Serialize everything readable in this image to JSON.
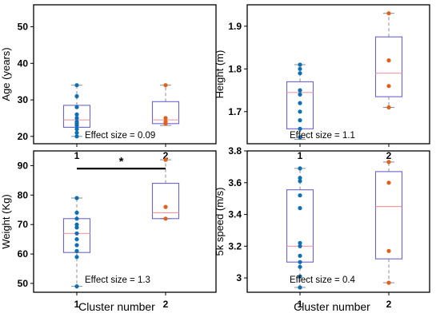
{
  "x_axis": {
    "label": "Cluster number"
  },
  "chart_data": [
    {
      "type": "boxplot",
      "ylabel": "Age (years)",
      "ylim": [
        18,
        56
      ],
      "yticks": [
        20,
        30,
        40,
        50
      ],
      "categories": [
        "1",
        "2"
      ],
      "annotation": "Effect size = 0.09",
      "groups": [
        {
          "q1": 22.5,
          "median": 24.5,
          "q3": 28.5,
          "whisker_low": 20,
          "whisker_high": 34,
          "points": [
            34,
            31,
            28,
            26,
            25,
            24,
            23.5,
            23,
            22,
            21,
            20
          ]
        },
        {
          "q1": 23.5,
          "median": 24.5,
          "q3": 29.5,
          "whisker_low": 23,
          "whisker_high": 34,
          "points": [
            34,
            25,
            24,
            23.5
          ]
        }
      ]
    },
    {
      "type": "boxplot",
      "ylabel": "Height (m)",
      "ylim": [
        1.625,
        1.95
      ],
      "yticks": [
        1.7,
        1.8,
        1.9
      ],
      "categories": [
        "1",
        "2"
      ],
      "annotation": "Effect size = 1.1",
      "groups": [
        {
          "q1": 1.66,
          "median": 1.745,
          "q3": 1.77,
          "whisker_low": 1.635,
          "whisker_high": 1.81,
          "points": [
            1.81,
            1.8,
            1.79,
            1.75,
            1.74,
            1.72,
            1.7,
            1.68,
            1.66,
            1.64
          ]
        },
        {
          "q1": 1.735,
          "median": 1.79,
          "q3": 1.875,
          "whisker_low": 1.71,
          "whisker_high": 1.93,
          "points": [
            1.93,
            1.82,
            1.76,
            1.71
          ]
        }
      ]
    },
    {
      "type": "boxplot",
      "ylabel": "Weight (Kg)",
      "ylim": [
        47,
        95
      ],
      "yticks": [
        50,
        60,
        70,
        80,
        90
      ],
      "categories": [
        "1",
        "2"
      ],
      "annotation": "Effect size = 1.3",
      "significance": {
        "from": "1",
        "to": "2",
        "value": 89,
        "label": "*"
      },
      "groups": [
        {
          "q1": 60.5,
          "median": 67,
          "q3": 72,
          "whisker_low": 49,
          "whisker_high": 79,
          "points": [
            79,
            74,
            72,
            70,
            69,
            67,
            65,
            63,
            61,
            59,
            49
          ]
        },
        {
          "q1": 72,
          "median": 74,
          "q3": 84,
          "whisker_low": 72,
          "whisker_high": 92,
          "points": [
            92,
            76,
            72
          ]
        }
      ]
    },
    {
      "type": "boxplot",
      "ylabel": "5k speed (m/s)",
      "ylim": [
        2.91,
        3.8
      ],
      "yticks": [
        3.0,
        3.2,
        3.4,
        3.6,
        3.8
      ],
      "ytick_labels": [
        "3",
        "3.2",
        "3.4",
        "3.6",
        "3.8"
      ],
      "categories": [
        "1",
        "2"
      ],
      "annotation": "Effect size = 0.4",
      "groups": [
        {
          "q1": 3.1,
          "median": 3.2,
          "q3": 3.555,
          "whisker_low": 2.94,
          "whisker_high": 3.69,
          "points": [
            3.69,
            3.63,
            3.61,
            3.52,
            3.44,
            3.22,
            3.2,
            3.14,
            3.1,
            3.07,
            3.01,
            2.94
          ]
        },
        {
          "q1": 3.12,
          "median": 3.45,
          "q3": 3.67,
          "whisker_low": 2.97,
          "whisker_high": 3.73,
          "points": [
            3.73,
            3.6,
            3.17,
            2.97
          ]
        }
      ]
    }
  ],
  "colors": {
    "cluster1": "#0f6fb5",
    "cluster2": "#e0601c",
    "box": "#6b62d6",
    "median": "#f29aa2",
    "whisker": "#8c8c8c"
  }
}
